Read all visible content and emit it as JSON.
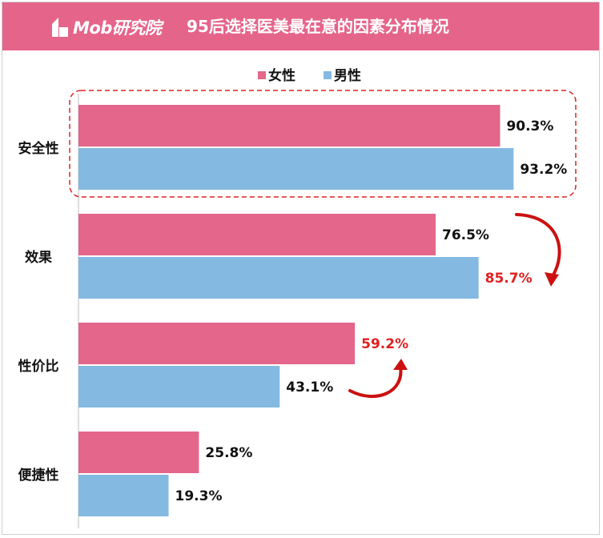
{
  "header": {
    "logo_text": "Mob研究院",
    "title": "95后选择医美最在意的因素分布情况"
  },
  "colors": {
    "female": "#e4668b",
    "male": "#84b9e2",
    "highlight": "#e02020",
    "header_bg": "#e5648a"
  },
  "chart_data": {
    "type": "bar",
    "orientation": "horizontal",
    "title": "95后选择医美最在意的因素分布情况",
    "categories": [
      "安全性",
      "效果",
      "性价比",
      "便捷性"
    ],
    "series": [
      {
        "name": "女性",
        "values": [
          90.3,
          76.5,
          59.2,
          25.8
        ],
        "labels": [
          "90.3%",
          "76.5%",
          "59.2%",
          "25.8%"
        ]
      },
      {
        "name": "男性",
        "values": [
          93.2,
          85.7,
          43.1,
          19.3
        ],
        "labels": [
          "93.2%",
          "85.7%",
          "43.1%",
          "19.3%"
        ]
      }
    ],
    "highlighted_labels": [
      "85.7%",
      "59.2%"
    ],
    "xlim": [
      0,
      100
    ],
    "legend": "top-center",
    "grid": false
  }
}
